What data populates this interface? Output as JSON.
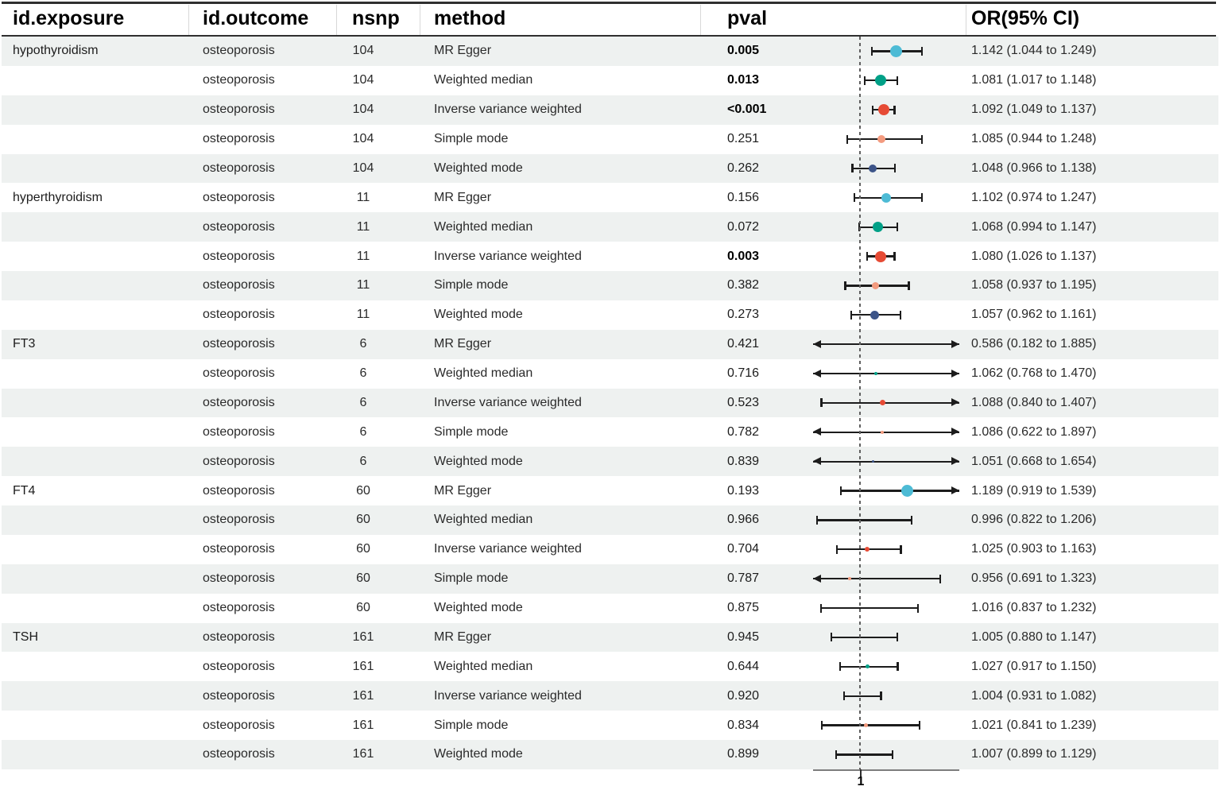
{
  "columns": {
    "exposure": "id.exposure",
    "outcome": "id.outcome",
    "nsnp": "nsnp",
    "method": "method",
    "pval": "pval",
    "or_ci": "OR(95% CI)"
  },
  "colors": {
    "mr_egger": "#4DBBD5",
    "weighted_median": "#00A087",
    "ivw": "#E64B35",
    "simple_mode": "#F39B7F",
    "weighted_mode": "#3C5488",
    "stripe": "#eef1f0",
    "ci_line": "#1c1c1c",
    "axis": "#7d7d7d"
  },
  "axis": {
    "ref_label": "1"
  },
  "chart_data": {
    "type": "forest",
    "title": "",
    "x_axis": {
      "scale": "linear",
      "xmin": 0.806,
      "xmax": 1.4,
      "ref_line": 1.0,
      "tick_labels": [
        "1"
      ]
    },
    "legend_position": "none",
    "grid": false,
    "rows": [
      {
        "exposure": "hypothyroidism",
        "outcome": "osteoporosis",
        "nsnp": "104",
        "method": "MR Egger",
        "pval": "0.005",
        "pval_bold": true,
        "or": 1.142,
        "ci_low": 1.044,
        "ci_high": 1.249,
        "or_label": "1.142 (1.044 to 1.249)",
        "color": "#4DBBD5",
        "dot_size": 15
      },
      {
        "exposure": "",
        "outcome": "osteoporosis",
        "nsnp": "104",
        "method": "Weighted median",
        "pval": "0.013",
        "pval_bold": true,
        "or": 1.081,
        "ci_low": 1.017,
        "ci_high": 1.148,
        "or_label": "1.081 (1.017 to 1.148)",
        "color": "#00A087",
        "dot_size": 14
      },
      {
        "exposure": "",
        "outcome": "osteoporosis",
        "nsnp": "104",
        "method": "Inverse variance weighted",
        "pval": "<0.001",
        "pval_bold": true,
        "or": 1.092,
        "ci_low": 1.049,
        "ci_high": 1.137,
        "or_label": "1.092 (1.049 to 1.137)",
        "color": "#E64B35",
        "dot_size": 14
      },
      {
        "exposure": "",
        "outcome": "osteoporosis",
        "nsnp": "104",
        "method": "Simple mode",
        "pval": "0.251",
        "pval_bold": false,
        "or": 1.085,
        "ci_low": 0.944,
        "ci_high": 1.248,
        "or_label": "1.085 (0.944 to 1.248)",
        "color": "#F39B7F",
        "dot_size": 10
      },
      {
        "exposure": "",
        "outcome": "osteoporosis",
        "nsnp": "104",
        "method": "Weighted mode",
        "pval": "0.262",
        "pval_bold": false,
        "or": 1.048,
        "ci_low": 0.966,
        "ci_high": 1.138,
        "or_label": "1.048 (0.966 to 1.138)",
        "color": "#3C5488",
        "dot_size": 10
      },
      {
        "exposure": "hyperthyroidism",
        "outcome": "osteoporosis",
        "nsnp": "11",
        "method": "MR Egger",
        "pval": "0.156",
        "pval_bold": false,
        "or": 1.102,
        "ci_low": 0.974,
        "ci_high": 1.247,
        "or_label": "1.102 (0.974 to 1.247)",
        "color": "#4DBBD5",
        "dot_size": 12
      },
      {
        "exposure": "",
        "outcome": "osteoporosis",
        "nsnp": "11",
        "method": "Weighted median",
        "pval": "0.072",
        "pval_bold": false,
        "or": 1.068,
        "ci_low": 0.994,
        "ci_high": 1.147,
        "or_label": "1.068 (0.994 to 1.147)",
        "color": "#00A087",
        "dot_size": 13
      },
      {
        "exposure": "",
        "outcome": "osteoporosis",
        "nsnp": "11",
        "method": "Inverse variance weighted",
        "pval": "0.003",
        "pval_bold": true,
        "or": 1.08,
        "ci_low": 1.026,
        "ci_high": 1.137,
        "or_label": "1.080 (1.026 to 1.137)",
        "color": "#E64B35",
        "dot_size": 14
      },
      {
        "exposure": "",
        "outcome": "osteoporosis",
        "nsnp": "11",
        "method": "Simple mode",
        "pval": "0.382",
        "pval_bold": false,
        "or": 1.058,
        "ci_low": 0.937,
        "ci_high": 1.195,
        "or_label": "1.058 (0.937 to 1.195)",
        "color": "#F39B7F",
        "dot_size": 9
      },
      {
        "exposure": "",
        "outcome": "osteoporosis",
        "nsnp": "11",
        "method": "Weighted mode",
        "pval": "0.273",
        "pval_bold": false,
        "or": 1.057,
        "ci_low": 0.962,
        "ci_high": 1.161,
        "or_label": "1.057 (0.962 to 1.161)",
        "color": "#3C5488",
        "dot_size": 11
      },
      {
        "exposure": "FT3",
        "outcome": "osteoporosis",
        "nsnp": "6",
        "method": "MR Egger",
        "pval": "0.421",
        "pval_bold": false,
        "or": 0.586,
        "ci_low": 0.182,
        "ci_high": 1.885,
        "or_label": "0.586 (0.182 to 1.885)",
        "color": "#4DBBD5",
        "dot_size": 0
      },
      {
        "exposure": "",
        "outcome": "osteoporosis",
        "nsnp": "6",
        "method": "Weighted median",
        "pval": "0.716",
        "pval_bold": false,
        "or": 1.062,
        "ci_low": 0.768,
        "ci_high": 1.47,
        "or_label": "1.062 (0.768 to 1.470)",
        "color": "#00A087",
        "dot_size": 4
      },
      {
        "exposure": "",
        "outcome": "osteoporosis",
        "nsnp": "6",
        "method": "Inverse variance weighted",
        "pval": "0.523",
        "pval_bold": false,
        "or": 1.088,
        "ci_low": 0.84,
        "ci_high": 1.407,
        "or_label": "1.088 (0.840 to 1.407)",
        "color": "#E64B35",
        "dot_size": 7
      },
      {
        "exposure": "",
        "outcome": "osteoporosis",
        "nsnp": "6",
        "method": "Simple mode",
        "pval": "0.782",
        "pval_bold": false,
        "or": 1.086,
        "ci_low": 0.622,
        "ci_high": 1.897,
        "or_label": "1.086 (0.622 to 1.897)",
        "color": "#F39B7F",
        "dot_size": 4
      },
      {
        "exposure": "",
        "outcome": "osteoporosis",
        "nsnp": "6",
        "method": "Weighted mode",
        "pval": "0.839",
        "pval_bold": false,
        "or": 1.051,
        "ci_low": 0.668,
        "ci_high": 1.654,
        "or_label": "1.051 (0.668 to 1.654)",
        "color": "#3C5488",
        "dot_size": 3
      },
      {
        "exposure": "FT4",
        "outcome": "osteoporosis",
        "nsnp": "60",
        "method": "MR Egger",
        "pval": "0.193",
        "pval_bold": false,
        "or": 1.189,
        "ci_low": 0.919,
        "ci_high": 1.539,
        "or_label": "1.189 (0.919 to 1.539)",
        "color": "#4DBBD5",
        "dot_size": 15
      },
      {
        "exposure": "",
        "outcome": "osteoporosis",
        "nsnp": "60",
        "method": "Weighted median",
        "pval": "0.966",
        "pval_bold": false,
        "or": 0.996,
        "ci_low": 0.822,
        "ci_high": 1.206,
        "or_label": "0.996 (0.822 to 1.206)",
        "color": "#00A087",
        "dot_size": 0
      },
      {
        "exposure": "",
        "outcome": "osteoporosis",
        "nsnp": "60",
        "method": "Inverse variance weighted",
        "pval": "0.704",
        "pval_bold": false,
        "or": 1.025,
        "ci_low": 0.903,
        "ci_high": 1.163,
        "or_label": "1.025 (0.903 to 1.163)",
        "color": "#E64B35",
        "dot_size": 6
      },
      {
        "exposure": "",
        "outcome": "osteoporosis",
        "nsnp": "60",
        "method": "Simple mode",
        "pval": "0.787",
        "pval_bold": false,
        "or": 0.956,
        "ci_low": 0.691,
        "ci_high": 1.323,
        "or_label": "0.956 (0.691 to 1.323)",
        "color": "#F39B7F",
        "dot_size": 4
      },
      {
        "exposure": "",
        "outcome": "osteoporosis",
        "nsnp": "60",
        "method": "Weighted mode",
        "pval": "0.875",
        "pval_bold": false,
        "or": 1.016,
        "ci_low": 0.837,
        "ci_high": 1.232,
        "or_label": "1.016 (0.837 to 1.232)",
        "color": "#3C5488",
        "dot_size": 0
      },
      {
        "exposure": "TSH",
        "outcome": "osteoporosis",
        "nsnp": "161",
        "method": "MR Egger",
        "pval": "0.945",
        "pval_bold": false,
        "or": 1.005,
        "ci_low": 0.88,
        "ci_high": 1.147,
        "or_label": "1.005 (0.880 to 1.147)",
        "color": "#4DBBD5",
        "dot_size": 0
      },
      {
        "exposure": "",
        "outcome": "osteoporosis",
        "nsnp": "161",
        "method": "Weighted median",
        "pval": "0.644",
        "pval_bold": false,
        "or": 1.027,
        "ci_low": 0.917,
        "ci_high": 1.15,
        "or_label": "1.027 (0.917 to 1.150)",
        "color": "#00A087",
        "dot_size": 5
      },
      {
        "exposure": "",
        "outcome": "osteoporosis",
        "nsnp": "161",
        "method": "Inverse variance weighted",
        "pval": "0.920",
        "pval_bold": false,
        "or": 1.004,
        "ci_low": 0.931,
        "ci_high": 1.082,
        "or_label": "1.004 (0.931 to 1.082)",
        "color": "#E64B35",
        "dot_size": 0
      },
      {
        "exposure": "",
        "outcome": "osteoporosis",
        "nsnp": "161",
        "method": "Simple mode",
        "pval": "0.834",
        "pval_bold": false,
        "or": 1.021,
        "ci_low": 0.841,
        "ci_high": 1.239,
        "or_label": "1.021 (0.841 to 1.239)",
        "color": "#F39B7F",
        "dot_size": 5
      },
      {
        "exposure": "",
        "outcome": "osteoporosis",
        "nsnp": "161",
        "method": "Weighted mode",
        "pval": "0.899",
        "pval_bold": false,
        "or": 1.007,
        "ci_low": 0.899,
        "ci_high": 1.129,
        "or_label": "1.007 (0.899 to 1.129)",
        "color": "#3C5488",
        "dot_size": 0
      }
    ]
  }
}
